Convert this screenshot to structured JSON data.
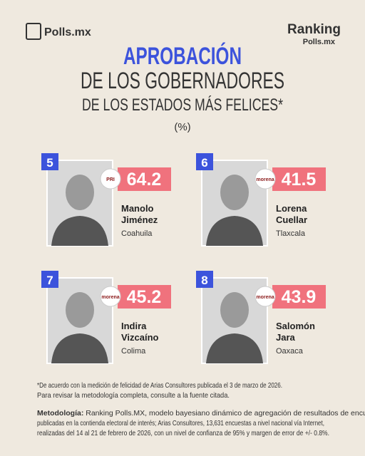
{
  "header": {
    "logo_left": "Polls.mx",
    "logo_right_top": "Ranking",
    "logo_right_bottom": "Polls.mx"
  },
  "title": {
    "line1": "APROBACIÓN",
    "line2": "DE LOS GOBERNADORES",
    "line3": "DE LOS ESTADOS MÁS FELICES*",
    "unit": "(%)"
  },
  "cards": [
    {
      "rank": 5,
      "first": "Manolo",
      "last": "Jiménez",
      "state": "Coahuila",
      "party": "PRI",
      "value": 64.2
    },
    {
      "rank": 6,
      "first": "Lorena",
      "last": "Cuellar",
      "state": "Tlaxcala",
      "party": "morena",
      "value": 41.5
    },
    {
      "rank": 7,
      "first": "Indira",
      "last": "Vizcaíno",
      "state": "Colima",
      "party": "morena",
      "value": 45.2
    },
    {
      "rank": 8,
      "first": "Salomón",
      "last": "Jara",
      "state": "Oaxaca",
      "party": "morena",
      "value": 43.9
    }
  ],
  "footnote": {
    "lines": [
      "*De acuerdo con la medición de felicidad de Arias Consultores publicada el 3 de marzo de 2026.",
      "Para revisar la metodología completa, consulte a la fuente citada."
    ]
  },
  "methodology": {
    "label": "Metodología:",
    "lines": [
      " Ranking Polls.MX, modelo bayesiano dinámico de agregación de resultados de encuestas",
      "publicadas en la contienda electoral de interés; Arias Consultores, 13,631 encuestas a nivel nacional vía Internet,",
      "realizadas del 14 al 21 de febrero de 2026, con un nivel de confianza de 95% y margen de error de +/- 0.8%."
    ]
  }
}
